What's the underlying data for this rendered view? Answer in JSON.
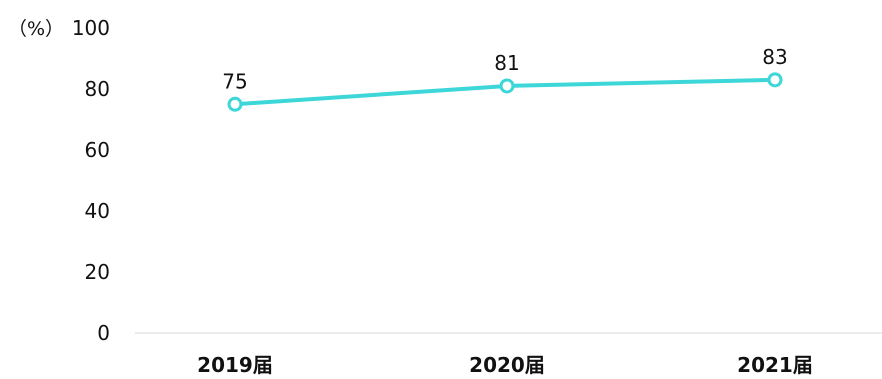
{
  "chart_data": {
    "type": "line",
    "title": "",
    "xlabel": "",
    "ylabel": "",
    "y_unit": "（%）",
    "categories": [
      "2019届",
      "2020届",
      "2021届"
    ],
    "series": [
      {
        "values": [
          75,
          81,
          83
        ],
        "color": "#3dd6d9"
      }
    ],
    "data_labels": [
      "75",
      "81",
      "83"
    ],
    "ylim": [
      0,
      100
    ],
    "yticks": [
      0,
      20,
      40,
      60,
      80,
      100
    ],
    "ytick_labels": [
      "0",
      "20",
      "40",
      "60",
      "80",
      "100"
    ],
    "grid": false,
    "legend": "none",
    "axis_color": "#d9d9d9"
  }
}
